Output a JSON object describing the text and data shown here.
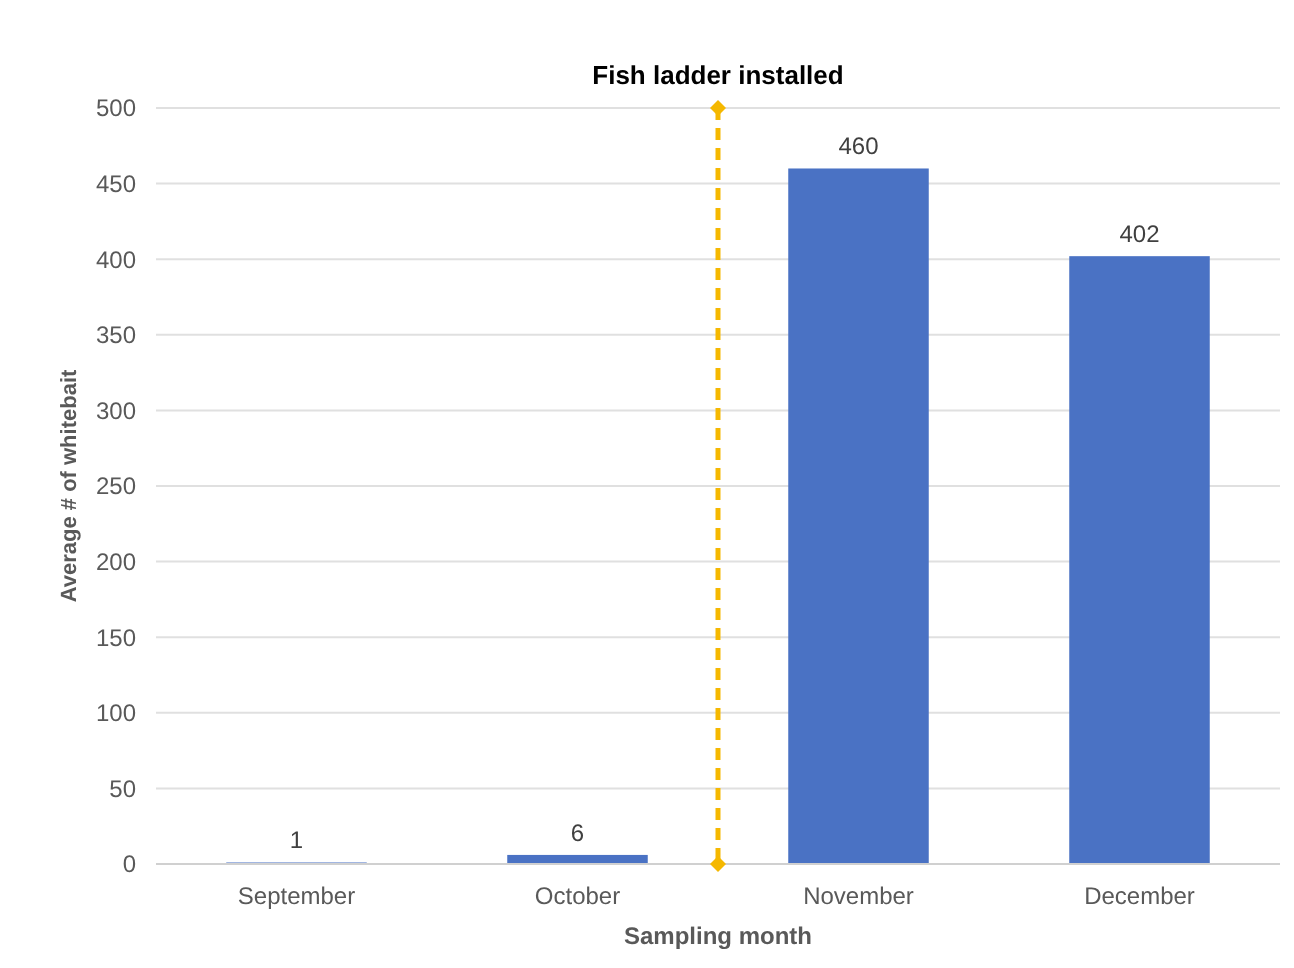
{
  "chart_data": {
    "type": "bar",
    "xlabel": "Sampling month",
    "ylabel": "Average # of whitebait",
    "categories": [
      "September",
      "October",
      "November",
      "December"
    ],
    "values": [
      1,
      6,
      460,
      402
    ],
    "color": "#4a72c4",
    "ylim": [
      0,
      500
    ],
    "yticks": [
      0,
      50,
      100,
      150,
      200,
      250,
      300,
      350,
      400,
      450,
      500
    ],
    "grid": "y",
    "data_labels": true,
    "annotations": [
      "Fish ladder installed"
    ]
  }
}
